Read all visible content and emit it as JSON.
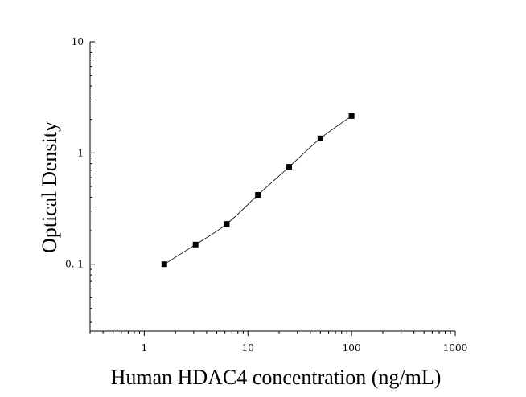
{
  "chart_data": {
    "type": "scatter",
    "title": "",
    "xlabel": "Human HDAC4 concentration (ng/mL)",
    "ylabel": "Optical Density",
    "x_scale": "log",
    "y_scale": "log",
    "xlim": [
      0.3,
      1000
    ],
    "ylim": [
      0.025,
      10
    ],
    "x_ticks": [
      {
        "value": 1,
        "label": "1"
      },
      {
        "value": 10,
        "label": "10"
      },
      {
        "value": 100,
        "label": "100"
      },
      {
        "value": 1000,
        "label": "1000"
      }
    ],
    "y_ticks": [
      {
        "value": 0.1,
        "label": "0. 1"
      },
      {
        "value": 1,
        "label": "1"
      },
      {
        "value": 10,
        "label": "10"
      }
    ],
    "grid": false,
    "legend": "none",
    "series": [
      {
        "x": [
          1.56,
          3.125,
          6.25,
          12.5,
          25,
          50,
          100
        ],
        "y": [
          0.1,
          0.15,
          0.23,
          0.42,
          0.75,
          1.35,
          2.15
        ],
        "marker": "square",
        "fit_curve": true
      }
    ],
    "colors": {
      "marker": "#000000",
      "line": "#000000",
      "axis": "#000000"
    }
  }
}
